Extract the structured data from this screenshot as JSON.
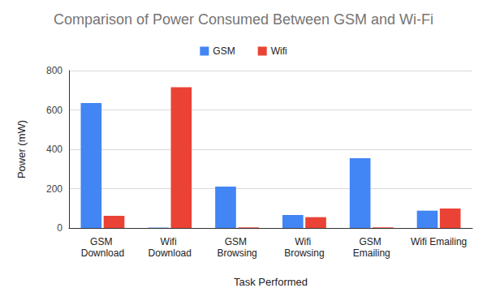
{
  "chart_data": {
    "type": "bar",
    "title": "Comparison of Power Consumed Between GSM and Wi-Fi",
    "x_label": "Task Performed",
    "y_label": "Power (mW)",
    "categories": [
      "GSM Download",
      "Wifi Download",
      "GSM Browsing",
      "Wifi Browsing",
      "GSM Emailing",
      "Wifi Emailing"
    ],
    "series": [
      {
        "name": "GSM",
        "color": "#4285f4",
        "values": [
          635,
          2,
          210,
          66,
          355,
          88
        ]
      },
      {
        "name": "Wifi",
        "color": "#ea4335",
        "values": [
          62,
          715,
          3,
          55,
          3,
          99
        ]
      }
    ],
    "ylim": [
      0,
      800
    ],
    "yticks": [
      0,
      200,
      400,
      600,
      800
    ],
    "grid": true,
    "legend": "top"
  }
}
